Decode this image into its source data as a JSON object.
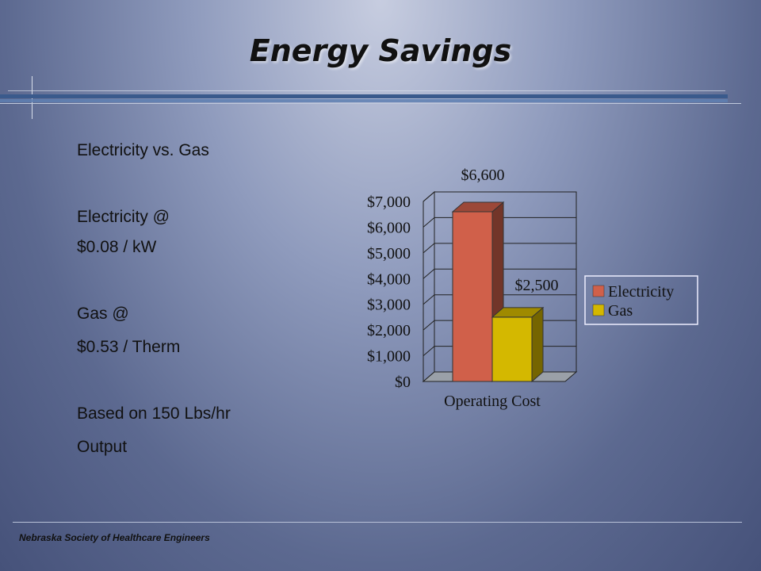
{
  "slide": {
    "title": "Energy Savings",
    "bullets": [
      "Electricity vs. Gas",
      "Electricity @",
      "$0.08 / kW",
      "Gas @",
      "$0.53 / Therm",
      "Based on 150 Lbs/hr",
      "Output"
    ],
    "footer": "Nebraska Society of Healthcare Engineers"
  },
  "chart_data": {
    "type": "bar",
    "categories": [
      "Operating Cost"
    ],
    "series": [
      {
        "name": "Electricity",
        "values": [
          6600
        ],
        "color": "#d0604a",
        "label": "$6,600"
      },
      {
        "name": "Gas",
        "values": [
          2500
        ],
        "color": "#d4b800",
        "label": "$2,500"
      }
    ],
    "yticks": [
      "$0",
      "$1,000",
      "$2,000",
      "$3,000",
      "$4,000",
      "$5,000",
      "$6,000",
      "$7,000"
    ],
    "ylim": [
      0,
      7000
    ],
    "legend": "right",
    "grid": true
  }
}
